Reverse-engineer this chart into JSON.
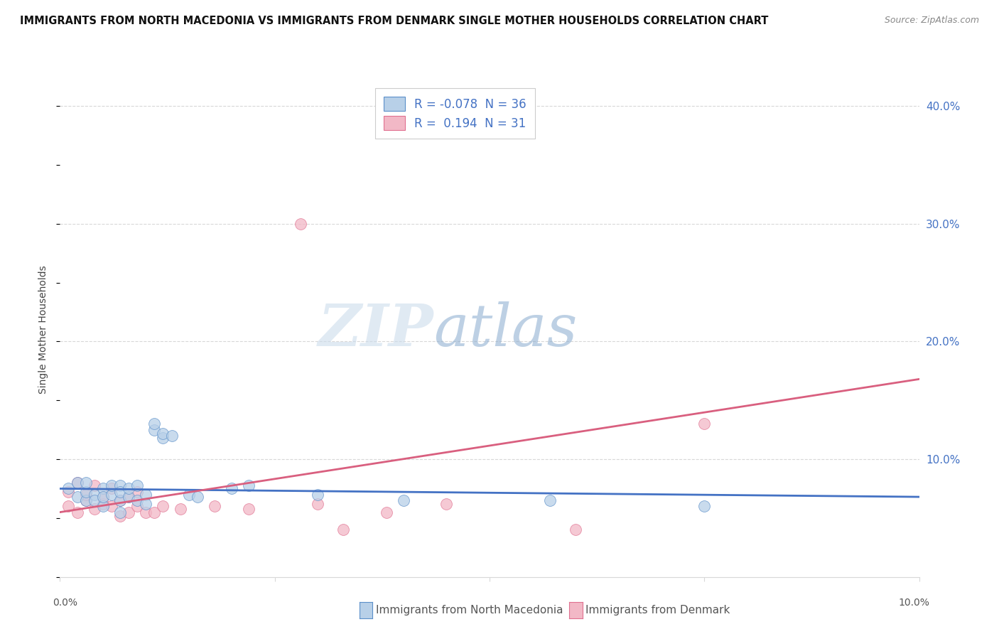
{
  "title": "IMMIGRANTS FROM NORTH MACEDONIA VS IMMIGRANTS FROM DENMARK SINGLE MOTHER HOUSEHOLDS CORRELATION CHART",
  "source": "Source: ZipAtlas.com",
  "ylabel": "Single Mother Households",
  "xlim": [
    0.0,
    0.1
  ],
  "ylim": [
    0.0,
    0.42
  ],
  "yticks": [
    0.1,
    0.2,
    0.3,
    0.4
  ],
  "ytick_labels": [
    "10.0%",
    "20.0%",
    "30.0%",
    "40.0%"
  ],
  "xticks": [
    0.0,
    0.025,
    0.05,
    0.075,
    0.1
  ],
  "legend_blue_r": "-0.078",
  "legend_blue_n": "36",
  "legend_pink_r": "0.194",
  "legend_pink_n": "31",
  "color_blue_fill": "#b8d0e8",
  "color_pink_fill": "#f2b8c6",
  "color_blue_edge": "#5b8fc9",
  "color_pink_edge": "#e07090",
  "color_line_blue": "#4472c4",
  "color_line_pink": "#d95f7f",
  "color_axis_right": "#4472c4",
  "background": "#ffffff",
  "grid_color": "#d8d8d8",
  "blue_line_x0": 0.0,
  "blue_line_y0": 0.075,
  "blue_line_x1": 0.1,
  "blue_line_y1": 0.068,
  "pink_line_x0": 0.0,
  "pink_line_y0": 0.055,
  "pink_line_x1": 0.1,
  "pink_line_y1": 0.168,
  "blue_scatter_x": [
    0.001,
    0.002,
    0.002,
    0.003,
    0.003,
    0.003,
    0.004,
    0.004,
    0.005,
    0.005,
    0.005,
    0.006,
    0.006,
    0.007,
    0.007,
    0.007,
    0.007,
    0.008,
    0.008,
    0.009,
    0.009,
    0.01,
    0.01,
    0.011,
    0.011,
    0.012,
    0.012,
    0.013,
    0.015,
    0.016,
    0.02,
    0.022,
    0.03,
    0.04,
    0.057,
    0.075
  ],
  "blue_scatter_y": [
    0.075,
    0.068,
    0.08,
    0.065,
    0.072,
    0.08,
    0.07,
    0.065,
    0.06,
    0.075,
    0.068,
    0.07,
    0.078,
    0.065,
    0.055,
    0.078,
    0.072,
    0.068,
    0.075,
    0.065,
    0.078,
    0.07,
    0.062,
    0.125,
    0.13,
    0.118,
    0.122,
    0.12,
    0.07,
    0.068,
    0.075,
    0.078,
    0.07,
    0.065,
    0.065,
    0.06
  ],
  "pink_scatter_x": [
    0.001,
    0.001,
    0.002,
    0.002,
    0.003,
    0.003,
    0.004,
    0.004,
    0.005,
    0.005,
    0.006,
    0.006,
    0.007,
    0.007,
    0.008,
    0.008,
    0.009,
    0.009,
    0.01,
    0.011,
    0.012,
    0.014,
    0.018,
    0.022,
    0.028,
    0.03,
    0.033,
    0.038,
    0.045,
    0.06,
    0.075
  ],
  "pink_scatter_y": [
    0.06,
    0.072,
    0.055,
    0.08,
    0.065,
    0.07,
    0.058,
    0.078,
    0.062,
    0.068,
    0.06,
    0.075,
    0.052,
    0.065,
    0.055,
    0.068,
    0.06,
    0.072,
    0.055,
    0.055,
    0.06,
    0.058,
    0.06,
    0.058,
    0.3,
    0.062,
    0.04,
    0.055,
    0.062,
    0.04,
    0.13
  ]
}
